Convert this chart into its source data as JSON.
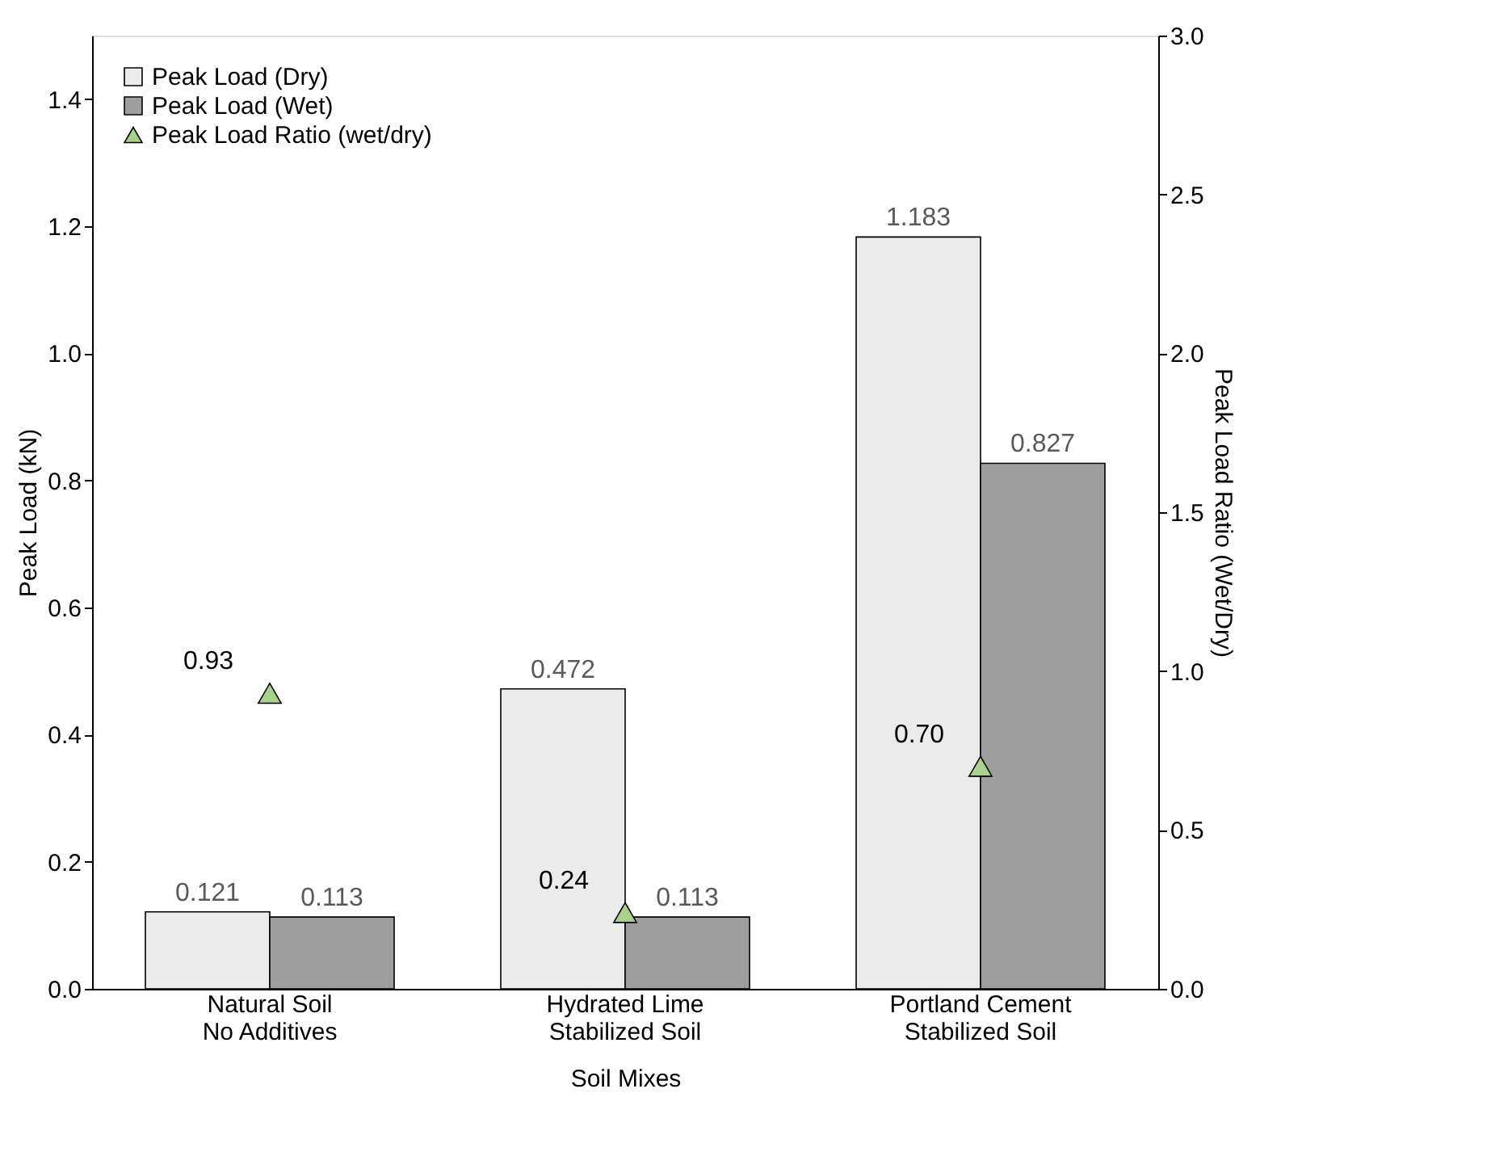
{
  "chart_data": {
    "type": "bar",
    "xlabel": "Soil Mixes",
    "ylabel": "Peak Load (kN)",
    "y2label": "Peak Load Ratio (Wet/Dry)",
    "categories": [
      "Natural Soil\nNo Additives",
      "Hydrated Lime\nStabilized Soil",
      "Portland Cement\nStabilized Soil"
    ],
    "series": [
      {
        "name": "Peak Load (Dry)",
        "color": "#ebebeb",
        "values": [
          0.121,
          0.472,
          1.183
        ]
      },
      {
        "name": "Peak Load (Wet)",
        "color": "#9e9e9e",
        "values": [
          0.113,
          0.113,
          0.827
        ]
      },
      {
        "name": "Peak Load Ratio (wet/dry)",
        "type": "scatter",
        "axis": "y2",
        "marker": "triangle",
        "color": "#a9d18e",
        "values": [
          0.93,
          0.24,
          0.7
        ],
        "value_labels": [
          "0.93",
          "0.24",
          "0.70"
        ]
      }
    ],
    "data_labels": true,
    "ylim": [
      0,
      1.5
    ],
    "yticks": [
      {
        "value": 0,
        "label": "0.0"
      },
      0.2,
      0.4,
      0.6,
      0.8,
      {
        "value": 1,
        "label": "1.0"
      },
      1.2,
      1.4
    ],
    "y2lim": [
      0,
      3.0
    ],
    "y2ticks": [
      {
        "value": 0,
        "label": "0.0"
      },
      0.5,
      {
        "value": 1,
        "label": "1.0"
      },
      1.5,
      {
        "value": 2,
        "label": "2.0"
      },
      2.5,
      {
        "value": 3,
        "label": "3.0"
      }
    ],
    "legend": "top left",
    "grid": false
  }
}
